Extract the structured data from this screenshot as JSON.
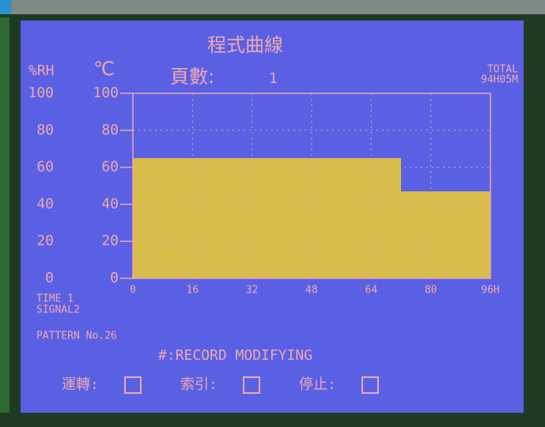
{
  "chart_data": {
    "type": "step",
    "title": "程式曲線",
    "page_label": "頁數:",
    "page": "1",
    "ylabel": "%RH",
    "y2label": "℃",
    "total_label": "TOTAL",
    "total": "94H05M",
    "x": [
      0,
      72
    ],
    "values": [
      65,
      47
    ],
    "color": "#d8bc4c",
    "xlim": [
      0,
      96
    ],
    "xticks": [
      0,
      16,
      32,
      48,
      64,
      80,
      {
        "value": 96,
        "label": "96H"
      }
    ],
    "ylim": [
      0,
      100
    ],
    "yticks": [
      0,
      20,
      40,
      60,
      80,
      100
    ],
    "y2lim": [
      0,
      100
    ],
    "y2ticks": [
      0,
      20,
      40,
      60,
      80,
      100
    ],
    "grid": true,
    "time": "TIME  1",
    "signal": "SIGNAL2",
    "pattern": "PATTERN No.26",
    "status": "#:RECORD MODIFYING",
    "buttons": [
      "運轉:",
      "索引:",
      "停止:"
    ]
  }
}
